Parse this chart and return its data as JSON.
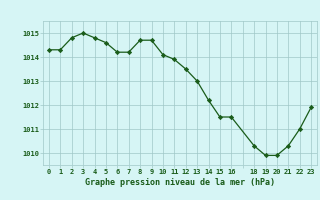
{
  "x": [
    0,
    1,
    2,
    3,
    4,
    5,
    6,
    7,
    8,
    9,
    10,
    11,
    12,
    13,
    14,
    15,
    16,
    18,
    19,
    20,
    21,
    22,
    23
  ],
  "y": [
    1014.3,
    1014.3,
    1014.8,
    1015.0,
    1014.8,
    1014.6,
    1014.2,
    1014.2,
    1014.7,
    1014.7,
    1014.1,
    1013.9,
    1013.5,
    1013.0,
    1012.2,
    1011.5,
    1011.5,
    1010.3,
    1009.9,
    1009.9,
    1010.3,
    1011.0,
    1011.9
  ],
  "line_color": "#1a5c1a",
  "marker_color": "#1a5c1a",
  "bg_color": "#d6f5f5",
  "grid_color": "#a0c8c8",
  "xlabel": "Graphe pression niveau de la mer (hPa)",
  "xlabel_color": "#1a5c1a",
  "tick_label_color": "#1a5c1a",
  "ylim": [
    1009.5,
    1015.5
  ],
  "yticks": [
    1010,
    1011,
    1012,
    1013,
    1014,
    1015
  ],
  "xtick_labels": [
    "0",
    "1",
    "2",
    "3",
    "4",
    "5",
    "6",
    "7",
    "8",
    "9",
    "10",
    "11",
    "12",
    "13",
    "14",
    "15",
    "16",
    "",
    "18",
    "19",
    "20",
    "21",
    "22",
    "23"
  ],
  "xtick_positions": [
    0,
    1,
    2,
    3,
    4,
    5,
    6,
    7,
    8,
    9,
    10,
    11,
    12,
    13,
    14,
    15,
    16,
    17,
    18,
    19,
    20,
    21,
    22,
    23
  ]
}
